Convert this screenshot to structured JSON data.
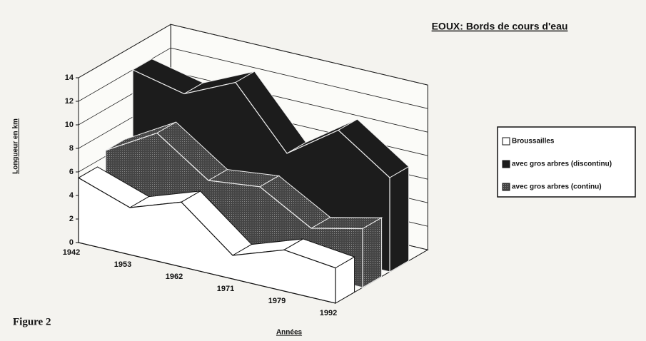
{
  "chart_data": {
    "type": "area3d",
    "title": "EOUX: Bords de cours d'eau",
    "y_label": "Longueur en km",
    "x_label": "Années",
    "figure_label": "Figure 2",
    "categories": [
      "1942",
      "1953",
      "1962",
      "1971",
      "1979",
      "1992"
    ],
    "series": [
      {
        "name": "Broussailles",
        "color": "#ffffff",
        "values": [
          5.5,
          4,
          5.5,
          2,
          3.5,
          3
        ]
      },
      {
        "name": "avec gros arbres (discontinu)",
        "color": "#1c1c1c",
        "values": [
          12,
          11,
          13,
          8,
          11,
          8
        ]
      },
      {
        "name": "avec gros arbres (continu)",
        "color": "#454545",
        "values": [
          6.5,
          9,
          6,
          6.5,
          4,
          5
        ]
      }
    ],
    "ylim": [
      0,
      14
    ],
    "yticks": [
      0,
      2,
      4,
      6,
      8,
      10,
      12,
      14
    ],
    "grid": true,
    "legend": "right"
  }
}
